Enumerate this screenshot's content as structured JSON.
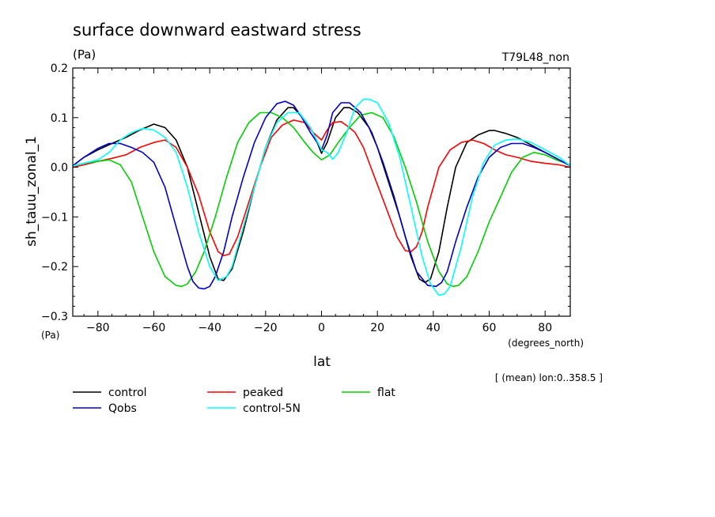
{
  "chart_data": {
    "type": "line",
    "title": "surface downward eastward stress",
    "units": "(Pa)",
    "run_label": "T79L48_non",
    "ylabel": "sh_tauu_zonal_1",
    "y_units_corner": "(Pa)",
    "xlabel": "lat",
    "x_units": "(degrees_north)",
    "footnote": "[ (mean) lon:0..358.5 ]",
    "xlim": [
      -89,
      89
    ],
    "ylim": [
      -0.3,
      0.2
    ],
    "xticks": [
      -80,
      -60,
      -40,
      -20,
      0,
      20,
      40,
      60,
      80
    ],
    "xtick_labels": [
      "−80",
      "−60",
      "−40",
      "−20",
      "0",
      "20",
      "40",
      "60",
      "80"
    ],
    "yticks": [
      -0.3,
      -0.2,
      -0.1,
      0.0,
      0.1,
      0.2
    ],
    "ytick_labels": [
      "−0.3",
      "−0.2",
      "−0.1",
      "0.0",
      "0.1",
      "0.2"
    ],
    "grid": false,
    "legend_position": "bottom",
    "series": [
      {
        "name": "control",
        "color": "#000000",
        "x": [
          -89,
          -85,
          -80,
          -75,
          -70,
          -65,
          -60,
          -56,
          -52,
          -48,
          -44,
          -40,
          -37,
          -35,
          -32,
          -28,
          -24,
          -20,
          -16,
          -12,
          -10,
          -6,
          -3,
          0,
          2,
          5,
          8,
          10,
          13,
          17,
          20,
          24,
          28,
          32,
          35,
          37,
          39,
          42,
          45,
          48,
          52,
          56,
          60,
          62,
          66,
          70,
          75,
          80,
          85,
          89
        ],
        "y": [
          0.003,
          0.02,
          0.035,
          0.048,
          0.06,
          0.075,
          0.087,
          0.08,
          0.055,
          0.0,
          -0.09,
          -0.18,
          -0.225,
          -0.228,
          -0.205,
          -0.13,
          -0.04,
          0.04,
          0.095,
          0.12,
          0.12,
          0.095,
          0.07,
          0.028,
          0.05,
          0.1,
          0.12,
          0.12,
          0.11,
          0.08,
          0.04,
          -0.03,
          -0.1,
          -0.18,
          -0.225,
          -0.232,
          -0.225,
          -0.17,
          -0.08,
          0.0,
          0.05,
          0.065,
          0.074,
          0.074,
          0.068,
          0.06,
          0.045,
          0.03,
          0.015,
          0.003
        ]
      },
      {
        "name": "peaked",
        "color": "#ff0000",
        "x": [
          -89,
          -85,
          -80,
          -75,
          -70,
          -65,
          -60,
          -56,
          -52,
          -48,
          -44,
          -40,
          -37,
          -35,
          -33,
          -30,
          -26,
          -22,
          -18,
          -14,
          -10,
          -6,
          -3,
          0,
          2,
          4,
          7,
          10,
          12,
          15,
          19,
          23,
          27,
          30,
          32,
          34,
          36,
          38,
          42,
          46,
          50,
          54,
          58,
          62,
          66,
          70,
          75,
          80,
          85,
          89
        ],
        "y": [
          0.0,
          0.005,
          0.012,
          0.018,
          0.025,
          0.04,
          0.05,
          0.055,
          0.04,
          0.0,
          -0.055,
          -0.13,
          -0.17,
          -0.178,
          -0.175,
          -0.14,
          -0.07,
          0.0,
          0.06,
          0.085,
          0.095,
          0.09,
          0.07,
          0.055,
          0.075,
          0.09,
          0.092,
          0.08,
          0.07,
          0.04,
          -0.02,
          -0.08,
          -0.14,
          -0.168,
          -0.17,
          -0.16,
          -0.13,
          -0.08,
          0.0,
          0.035,
          0.05,
          0.055,
          0.048,
          0.035,
          0.025,
          0.02,
          0.012,
          0.008,
          0.005,
          0.0
        ]
      },
      {
        "name": "flat",
        "color": "#00d000",
        "x": [
          -89,
          -85,
          -80,
          -76,
          -72,
          -68,
          -64,
          -60,
          -56,
          -52,
          -50,
          -48,
          -45,
          -42,
          -38,
          -34,
          -30,
          -26,
          -22,
          -18,
          -14,
          -10,
          -6,
          -3,
          0,
          3,
          6,
          10,
          14,
          18,
          22,
          26,
          30,
          34,
          38,
          42,
          45,
          47,
          49,
          52,
          56,
          60,
          64,
          68,
          72,
          76,
          80,
          84,
          89
        ],
        "y": [
          0.003,
          0.008,
          0.012,
          0.015,
          0.005,
          -0.03,
          -0.1,
          -0.17,
          -0.22,
          -0.238,
          -0.24,
          -0.235,
          -0.21,
          -0.17,
          -0.1,
          -0.02,
          0.05,
          0.09,
          0.11,
          0.11,
          0.1,
          0.08,
          0.05,
          0.03,
          0.015,
          0.025,
          0.05,
          0.08,
          0.105,
          0.11,
          0.1,
          0.06,
          0.0,
          -0.07,
          -0.15,
          -0.21,
          -0.235,
          -0.24,
          -0.238,
          -0.22,
          -0.17,
          -0.11,
          -0.06,
          -0.01,
          0.02,
          0.03,
          0.025,
          0.015,
          0.005
        ]
      },
      {
        "name": "Qobs",
        "color": "#0000cc",
        "x": [
          -89,
          -85,
          -80,
          -76,
          -72,
          -68,
          -64,
          -60,
          -56,
          -52,
          -48,
          -46,
          -44,
          -42,
          -40,
          -38,
          -35,
          -32,
          -28,
          -24,
          -20,
          -16,
          -13,
          -10,
          -7,
          -4,
          -1,
          0,
          2,
          4,
          7,
          10,
          12,
          14,
          18,
          22,
          26,
          30,
          34,
          38,
          41,
          43,
          45,
          48,
          52,
          56,
          60,
          64,
          68,
          72,
          76,
          80,
          85,
          89
        ],
        "y": [
          0.003,
          0.02,
          0.038,
          0.048,
          0.048,
          0.04,
          0.03,
          0.01,
          -0.04,
          -0.12,
          -0.2,
          -0.23,
          -0.243,
          -0.245,
          -0.24,
          -0.22,
          -0.17,
          -0.1,
          -0.02,
          0.05,
          0.1,
          0.128,
          0.133,
          0.125,
          0.1,
          0.07,
          0.045,
          0.035,
          0.065,
          0.11,
          0.13,
          0.13,
          0.12,
          0.11,
          0.07,
          0.01,
          -0.06,
          -0.14,
          -0.21,
          -0.238,
          -0.24,
          -0.232,
          -0.21,
          -0.15,
          -0.08,
          -0.02,
          0.02,
          0.04,
          0.048,
          0.048,
          0.04,
          0.03,
          0.015,
          0.003
        ]
      },
      {
        "name": "control-5N",
        "color": "#00ffff",
        "x": [
          -89,
          -85,
          -80,
          -76,
          -72,
          -68,
          -64,
          -60,
          -56,
          -52,
          -48,
          -44,
          -40,
          -37,
          -34,
          -32,
          -28,
          -24,
          -20,
          -16,
          -12,
          -8,
          -4,
          0,
          2,
          4,
          6,
          9,
          12,
          15,
          17,
          20,
          24,
          28,
          32,
          36,
          39,
          42,
          44,
          46,
          50,
          54,
          58,
          62,
          66,
          70,
          75,
          80,
          85,
          89
        ],
        "y": [
          0.003,
          0.008,
          0.015,
          0.03,
          0.055,
          0.07,
          0.078,
          0.075,
          0.06,
          0.03,
          -0.04,
          -0.13,
          -0.2,
          -0.228,
          -0.22,
          -0.2,
          -0.12,
          -0.04,
          0.04,
          0.09,
          0.11,
          0.11,
          0.08,
          0.035,
          0.03,
          0.016,
          0.03,
          0.07,
          0.12,
          0.137,
          0.137,
          0.13,
          0.09,
          0.02,
          -0.08,
          -0.18,
          -0.235,
          -0.258,
          -0.255,
          -0.24,
          -0.16,
          -0.06,
          0.01,
          0.045,
          0.055,
          0.057,
          0.05,
          0.035,
          0.02,
          0.003
        ]
      }
    ]
  }
}
